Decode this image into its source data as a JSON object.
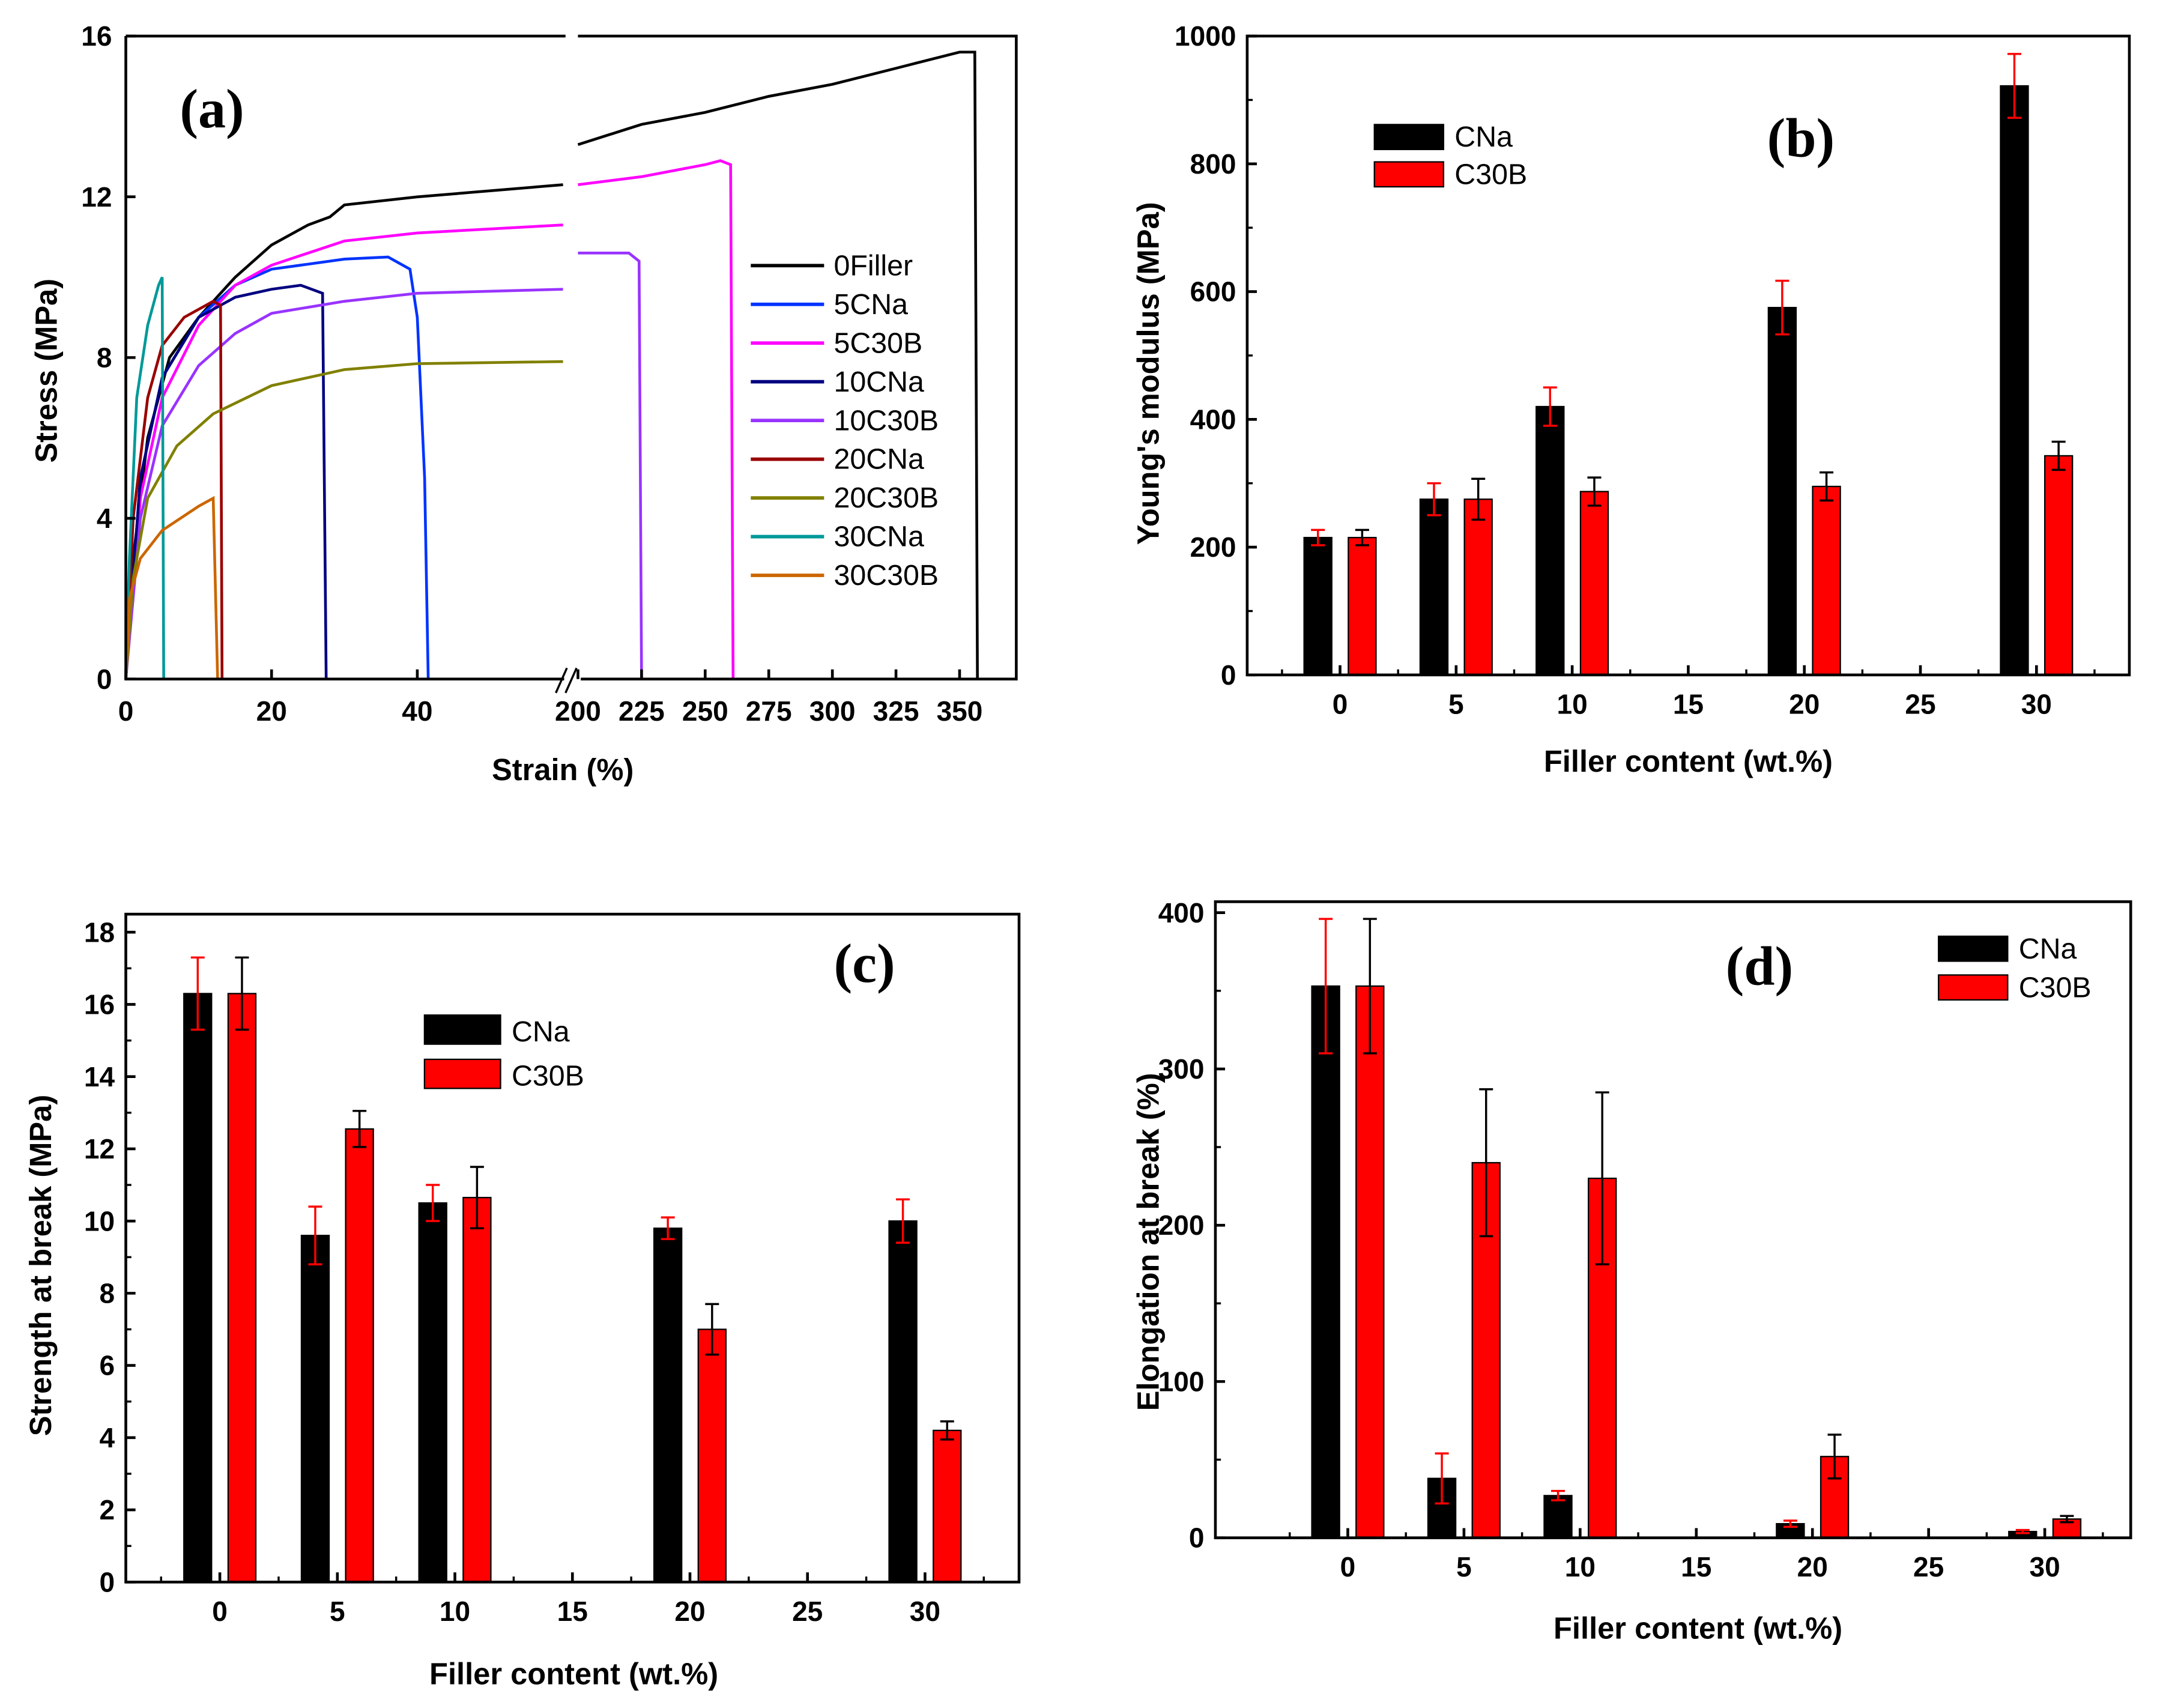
{
  "chart_data": [
    {
      "panel": "(a)",
      "type": "line",
      "xlabel": "Strain (%)",
      "ylabel": "Stress (MPa)",
      "ylim": [
        0,
        16
      ],
      "yticks": [
        0,
        4,
        8,
        12,
        16
      ],
      "x_broken_axis": {
        "left_range": [
          0,
          60
        ],
        "right_range": [
          200,
          372
        ]
      },
      "xticks_left": [
        0,
        20,
        40
      ],
      "xticks_right": [
        200,
        225,
        250,
        275,
        300,
        325,
        350
      ],
      "legend_position": "right-middle",
      "series": [
        {
          "name": "0Filler",
          "color": "#000000",
          "points": [
            [
              0,
              0
            ],
            [
              1,
              3
            ],
            [
              3,
              6
            ],
            [
              6,
              8
            ],
            [
              10,
              9
            ],
            [
              15,
              10
            ],
            [
              20,
              10.8
            ],
            [
              25,
              11.3
            ],
            [
              28,
              11.5
            ],
            [
              30,
              11.8
            ],
            [
              40,
              12
            ],
            [
              60,
              12.3
            ],
            [
              200,
              13.3
            ],
            [
              225,
              13.8
            ],
            [
              250,
              14.1
            ],
            [
              275,
              14.5
            ],
            [
              300,
              14.8
            ],
            [
              325,
              15.2
            ],
            [
              350,
              15.6
            ],
            [
              356,
              15.6
            ],
            [
              357,
              0
            ]
          ]
        },
        {
          "name": "5CNa",
          "color": "#0033ff",
          "points": [
            [
              0,
              0
            ],
            [
              2,
              5
            ],
            [
              5,
              7.5
            ],
            [
              10,
              9
            ],
            [
              15,
              9.8
            ],
            [
              20,
              10.2
            ],
            [
              30,
              10.45
            ],
            [
              36,
              10.5
            ],
            [
              39,
              10.2
            ],
            [
              40,
              9
            ],
            [
              41,
              5
            ],
            [
              41.5,
              0
            ]
          ]
        },
        {
          "name": "5C30B",
          "color": "#ff00ff",
          "points": [
            [
              0,
              0
            ],
            [
              2,
              4.5
            ],
            [
              5,
              7
            ],
            [
              10,
              8.8
            ],
            [
              15,
              9.8
            ],
            [
              20,
              10.3
            ],
            [
              30,
              10.9
            ],
            [
              40,
              11.1
            ],
            [
              60,
              11.3
            ],
            [
              200,
              12.3
            ],
            [
              225,
              12.5
            ],
            [
              250,
              12.8
            ],
            [
              256,
              12.9
            ],
            [
              260,
              12.8
            ],
            [
              261,
              0
            ]
          ]
        },
        {
          "name": "10CNa",
          "color": "#000080",
          "points": [
            [
              0,
              0
            ],
            [
              2,
              5
            ],
            [
              5,
              7.5
            ],
            [
              10,
              9
            ],
            [
              15,
              9.5
            ],
            [
              20,
              9.7
            ],
            [
              24,
              9.8
            ],
            [
              27,
              9.6
            ],
            [
              27.5,
              0
            ]
          ]
        },
        {
          "name": "10C30B",
          "color": "#9933ff",
          "points": [
            [
              0,
              0
            ],
            [
              2,
              4
            ],
            [
              5,
              6.3
            ],
            [
              10,
              7.8
            ],
            [
              15,
              8.6
            ],
            [
              20,
              9.1
            ],
            [
              30,
              9.4
            ],
            [
              40,
              9.6
            ],
            [
              60,
              9.7
            ],
            [
              200,
              10.6
            ],
            [
              220,
              10.6
            ],
            [
              224,
              10.4
            ],
            [
              225,
              0
            ]
          ]
        },
        {
          "name": "20CNa",
          "color": "#990000",
          "points": [
            [
              0,
              0
            ],
            [
              1,
              4
            ],
            [
              3,
              7
            ],
            [
              5,
              8.3
            ],
            [
              8,
              9
            ],
            [
              12,
              9.4
            ],
            [
              13,
              9.3
            ],
            [
              13.2,
              0
            ]
          ]
        },
        {
          "name": "20C30B",
          "color": "#808000",
          "points": [
            [
              0,
              0
            ],
            [
              1,
              2.5
            ],
            [
              3,
              4.5
            ],
            [
              7,
              5.8
            ],
            [
              12,
              6.6
            ],
            [
              20,
              7.3
            ],
            [
              30,
              7.7
            ],
            [
              40,
              7.85
            ],
            [
              60,
              7.9
            ]
          ]
        },
        {
          "name": "30CNa",
          "color": "#009999",
          "points": [
            [
              0,
              0
            ],
            [
              0.5,
              3
            ],
            [
              1.5,
              7
            ],
            [
              3,
              8.8
            ],
            [
              4.5,
              9.8
            ],
            [
              5,
              10
            ],
            [
              5.2,
              0
            ]
          ]
        },
        {
          "name": "30C30B",
          "color": "#cc6600",
          "points": [
            [
              0,
              0
            ],
            [
              0.5,
              2
            ],
            [
              2,
              3
            ],
            [
              5,
              3.7
            ],
            [
              10,
              4.3
            ],
            [
              12,
              4.5
            ],
            [
              12.6,
              0
            ]
          ]
        }
      ]
    },
    {
      "panel": "(b)",
      "type": "bar",
      "xlabel": "Filler content (wt.%)",
      "ylabel": "Young's modulus (MPa)",
      "x": [
        0,
        5,
        10,
        20,
        30
      ],
      "xticks": [
        0,
        5,
        10,
        15,
        20,
        25,
        30
      ],
      "xlim": [
        -4,
        34
      ],
      "ylim": [
        0,
        1000
      ],
      "yticks": [
        0,
        200,
        400,
        600,
        800,
        1000
      ],
      "legend_position": "top-left",
      "series": [
        {
          "name": "CNa",
          "color": "#000000",
          "errcolor": "#ff0000",
          "values": [
            215,
            275,
            420,
            575,
            922
          ],
          "errors": [
            12,
            25,
            30,
            42,
            50
          ]
        },
        {
          "name": "C30B",
          "color": "#ff0000",
          "errcolor": "#000000",
          "values": [
            215,
            275,
            287,
            295,
            343
          ],
          "errors": [
            12,
            32,
            22,
            22,
            22
          ]
        }
      ]
    },
    {
      "panel": "(c)",
      "type": "bar",
      "xlabel": "Filler content (wt.%)",
      "ylabel": "Strength at break (MPa)",
      "x": [
        0,
        5,
        10,
        20,
        30
      ],
      "xticks": [
        0,
        5,
        10,
        15,
        20,
        25,
        30
      ],
      "xlim": [
        -4,
        34
      ],
      "ylim": [
        0,
        18.5
      ],
      "yticks": [
        0,
        2,
        4,
        6,
        8,
        10,
        12,
        14,
        16,
        18
      ],
      "legend_position": "top-center",
      "series": [
        {
          "name": "CNa",
          "color": "#000000",
          "errcolor": "#ff0000",
          "values": [
            16.3,
            9.6,
            10.5,
            9.8,
            10.0
          ],
          "errors": [
            1.0,
            0.8,
            0.5,
            0.3,
            0.6
          ]
        },
        {
          "name": "C30B",
          "color": "#ff0000",
          "errcolor": "#000000",
          "values": [
            16.3,
            12.55,
            10.65,
            7.0,
            4.2
          ],
          "errors": [
            1.0,
            0.5,
            0.85,
            0.7,
            0.25
          ]
        }
      ]
    },
    {
      "panel": "(d)",
      "type": "bar",
      "xlabel": "Filler content (wt.%)",
      "ylabel": "Elongation at break (%)",
      "x": [
        0,
        5,
        10,
        20,
        30
      ],
      "xticks": [
        0,
        5,
        10,
        15,
        20,
        25,
        30
      ],
      "xlim": [
        -5.7,
        33.7
      ],
      "ylim": [
        0,
        407
      ],
      "yticks": [
        0,
        100,
        200,
        300,
        400
      ],
      "legend_position": "top-right",
      "series": [
        {
          "name": "CNa",
          "color": "#000000",
          "errcolor": "#ff0000",
          "values": [
            353,
            38,
            27,
            9,
            4
          ],
          "errors": [
            43,
            16,
            3,
            2,
            1
          ]
        },
        {
          "name": "C30B",
          "color": "#ff0000",
          "errcolor": "#000000",
          "values": [
            353,
            240,
            230,
            52,
            12
          ],
          "errors": [
            43,
            47,
            55,
            14,
            2
          ]
        }
      ]
    }
  ]
}
